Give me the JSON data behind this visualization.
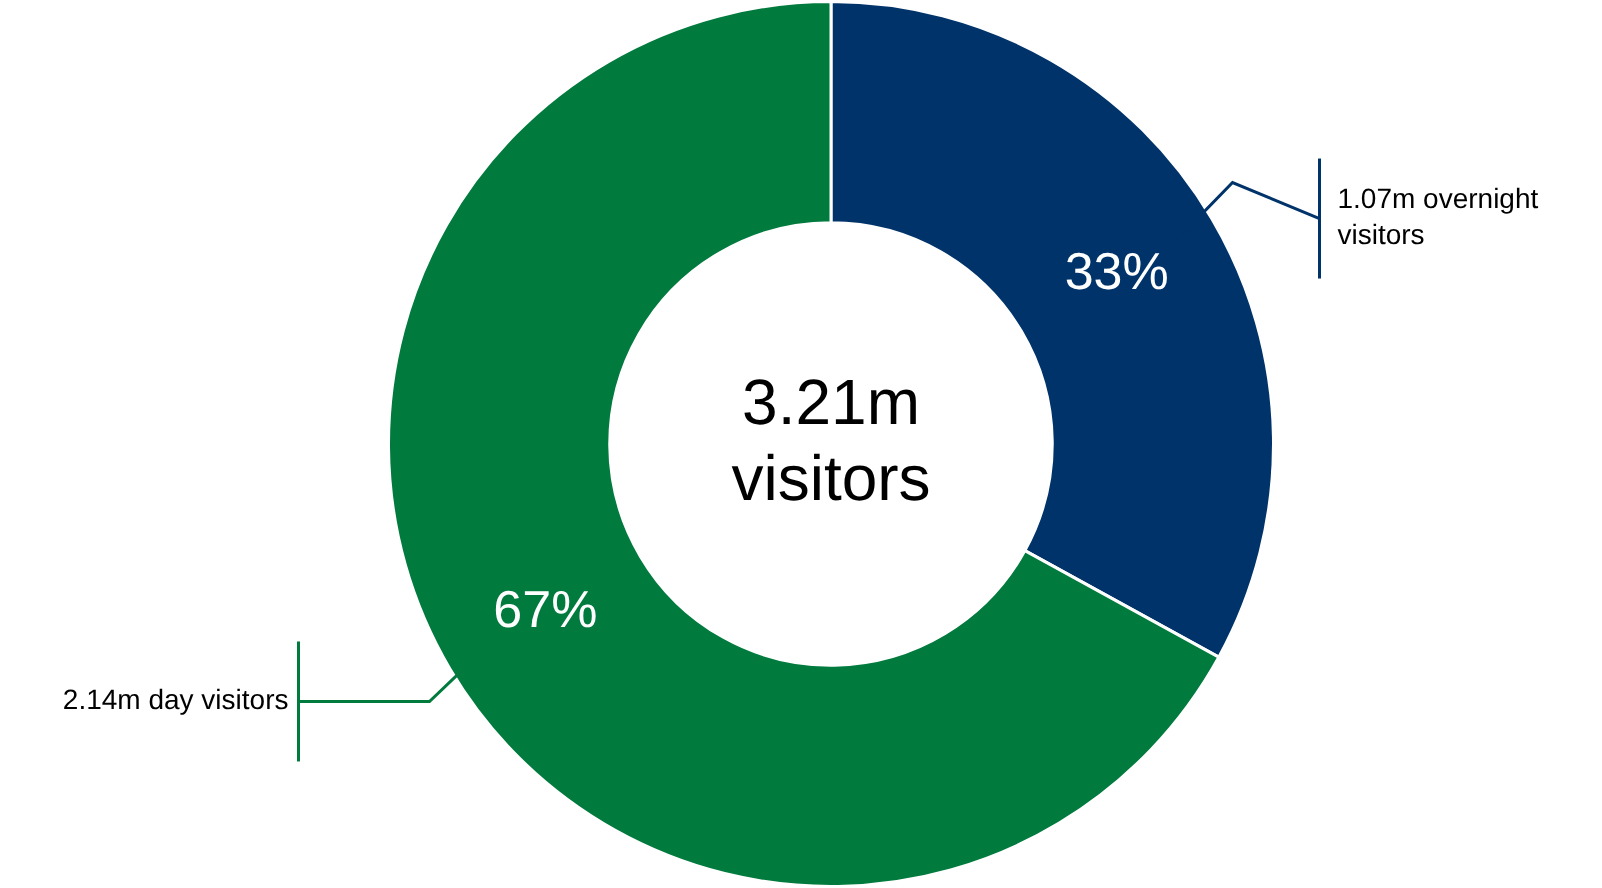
{
  "chart_data": {
    "type": "donut",
    "categories": [
      "1.07m overnight visitors",
      "2.14m day visitors"
    ],
    "values": [
      33,
      67
    ],
    "value_labels": [
      "33%",
      "67%"
    ],
    "colors": [
      "#00336a",
      "#007a3d"
    ],
    "annotations": [
      "3.21m visitors"
    ],
    "legend": false
  }
}
